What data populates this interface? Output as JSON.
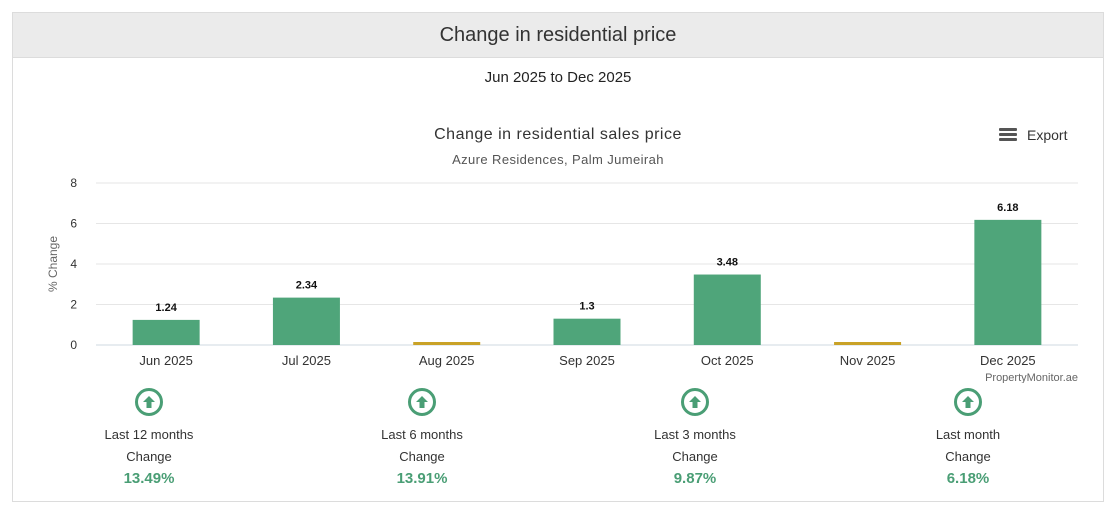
{
  "header": {
    "title": "Change in residential price"
  },
  "date_range": "Jun 2025 to Dec 2025",
  "export_label": "Export",
  "colors": {
    "bar_positive": "#4fa57a",
    "bar_flat": "#c9a227",
    "accent": "#4a9e75"
  },
  "chart_data": {
    "type": "bar",
    "title": "Change in residential sales price",
    "subtitle": "Azure Residences, Palm Jumeirah",
    "ylabel": "% Change",
    "xlabel": "",
    "ylim": [
      0,
      8
    ],
    "yticks": [
      0,
      2,
      4,
      6,
      8
    ],
    "grid": true,
    "categories": [
      "Jun 2025",
      "Jul 2025",
      "Aug 2025",
      "Sep 2025",
      "Oct 2025",
      "Nov 2025",
      "Dec 2025"
    ],
    "values": [
      1.24,
      2.34,
      0,
      1.3,
      3.48,
      0,
      6.18
    ],
    "data_labels": [
      "1.24",
      "2.34",
      "",
      "1.3",
      "3.48",
      "",
      "6.18"
    ],
    "credit": "PropertyMonitor.ae"
  },
  "stats": [
    {
      "period": "Last 12 months",
      "label": "Change",
      "value": "13.49%",
      "icon": "arrow-up-circle-icon"
    },
    {
      "period": "Last 6 months",
      "label": "Change",
      "value": "13.91%",
      "icon": "arrow-up-circle-icon"
    },
    {
      "period": "Last 3 months",
      "label": "Change",
      "value": "9.87%",
      "icon": "arrow-up-circle-icon"
    },
    {
      "period": "Last month",
      "label": "Change",
      "value": "6.18%",
      "icon": "arrow-up-circle-icon"
    }
  ]
}
